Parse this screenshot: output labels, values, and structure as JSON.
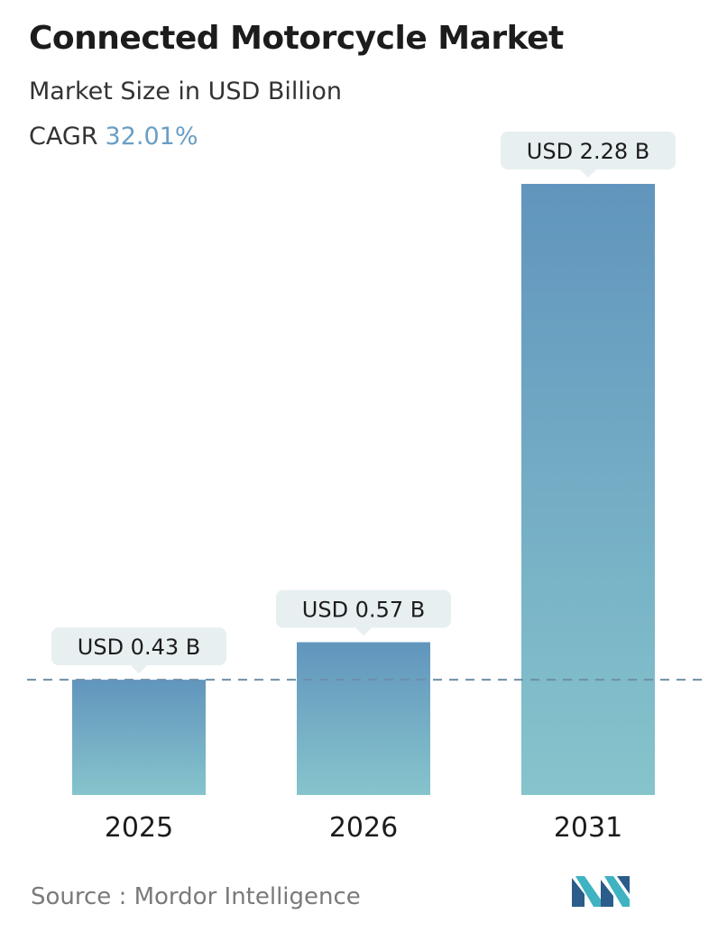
{
  "header": {
    "title": "Connected Motorcycle Market",
    "subtitle": "Market Size in USD Billion",
    "cagr_label": "CAGR",
    "cagr_value": "32.01%"
  },
  "chart_data": {
    "type": "bar",
    "categories": [
      "2025",
      "2026",
      "2031"
    ],
    "values": [
      0.43,
      0.57,
      2.28
    ],
    "value_labels": [
      "USD 0.43 B",
      "USD 0.57 B",
      "USD 2.28 B"
    ],
    "title": "Connected Motorcycle Market",
    "subtitle": "Market Size in USD Billion",
    "grid": false,
    "reference_line": "dashed at first bar value",
    "colors": {
      "bar_top": "#6195bd",
      "bar_bottom": "#86c4cc",
      "label_bg": "#e8eff1",
      "dashed_line": "#6d8fa6"
    }
  },
  "footer": {
    "source": "Source :  Mordor Intelligence",
    "logo": "mordor-intelligence-logo"
  }
}
